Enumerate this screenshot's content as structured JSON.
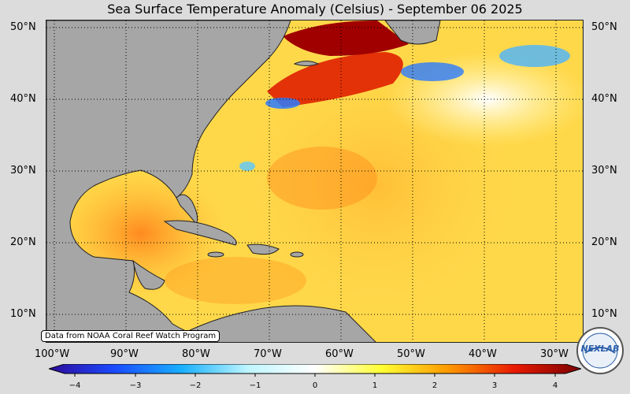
{
  "title": "Sea Surface Temperature Anomaly (Celsius) - September 06 2025",
  "source_note": "Data from NOAA Coral Reef Watch Program",
  "logo_text": "NEXLAB",
  "lat_labels": [
    "50°N",
    "40°N",
    "30°N",
    "20°N",
    "10°N"
  ],
  "lon_labels": [
    "100°W",
    "90°W",
    "80°W",
    "70°W",
    "60°W",
    "50°W",
    "40°W",
    "30°W"
  ],
  "colorbar": {
    "min": -4,
    "max": 4,
    "ticks": [
      "−4",
      "−3",
      "−2",
      "−1",
      "0",
      "1",
      "2",
      "3",
      "4"
    ],
    "colors": [
      "#2d0a9c",
      "#1a4cff",
      "#19b0ff",
      "#bff6ff",
      "#ffffff",
      "#ffff33",
      "#ff9900",
      "#e81a00",
      "#7a0000"
    ]
  }
}
